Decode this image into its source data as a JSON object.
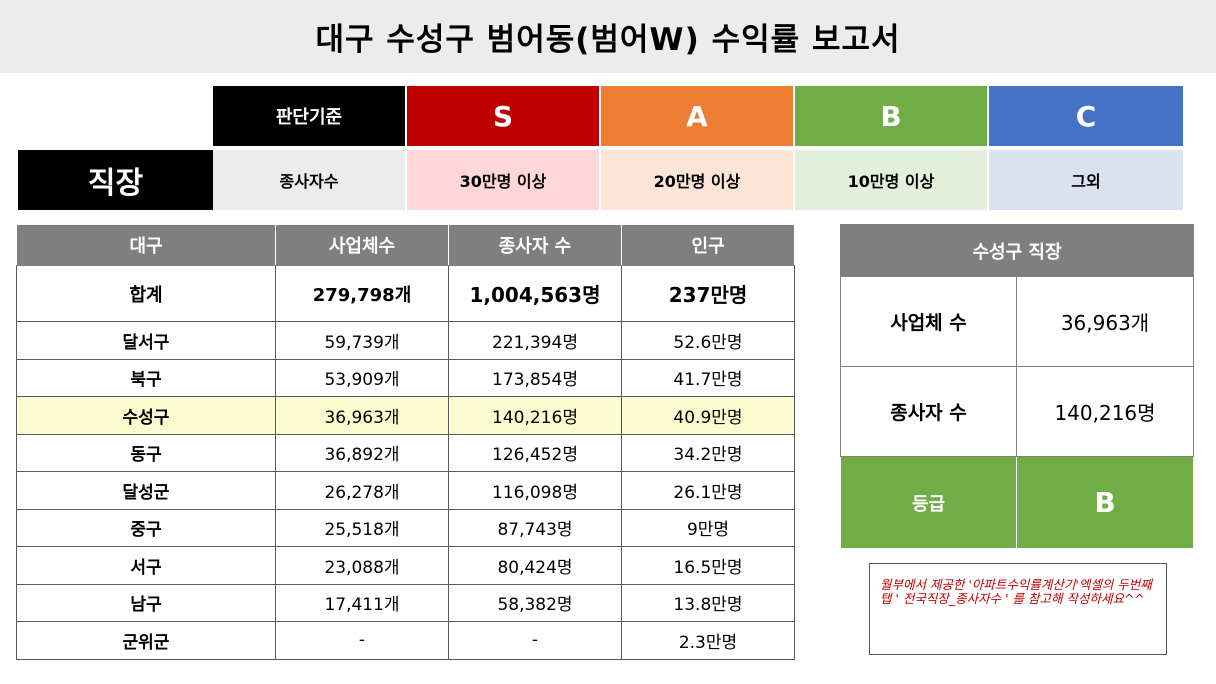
{
  "title": "대구 수성구 범어동(범어W) 수익률 보고서",
  "criteria": {
    "judge_label": "판단기준",
    "category_label": "직장",
    "metric_label": "종사자수",
    "grades": [
      {
        "grade": "S",
        "range": "30만명 이상",
        "color": "#c00000"
      },
      {
        "grade": "A",
        "range": "20만명 이상",
        "color": "#ed7d31"
      },
      {
        "grade": "B",
        "range": "10만명 이상",
        "color": "#70ad47"
      },
      {
        "grade": "C",
        "range": "그외",
        "color": "#4472c4"
      }
    ]
  },
  "district_table": {
    "headers": [
      "대구",
      "사업체수",
      "종사자 수",
      "인구"
    ],
    "total": {
      "name": "합계",
      "businesses": "279,798개",
      "employees": "1,004,563명",
      "population": "237만명"
    },
    "rows": [
      {
        "name": "달서구",
        "businesses": "59,739개",
        "employees": "221,394명",
        "population": "52.6만명"
      },
      {
        "name": "북구",
        "businesses": "53,909개",
        "employees": "173,854명",
        "population": "41.7만명"
      },
      {
        "name": "수성구",
        "businesses": "36,963개",
        "employees": "140,216명",
        "population": "40.9만명"
      },
      {
        "name": "동구",
        "businesses": "36,892개",
        "employees": "126,452명",
        "population": "34.2만명"
      },
      {
        "name": "달성군",
        "businesses": "26,278개",
        "employees": "116,098명",
        "population": "26.1만명"
      },
      {
        "name": "중구",
        "businesses": "25,518개",
        "employees": "87,743명",
        "population": "9만명"
      },
      {
        "name": "서구",
        "businesses": "23,088개",
        "employees": "80,424명",
        "population": "16.5만명"
      },
      {
        "name": "남구",
        "businesses": "17,411개",
        "employees": "58,382명",
        "population": "13.8만명"
      },
      {
        "name": "군위군",
        "businesses": "-",
        "employees": "-",
        "population": "2.3만명"
      }
    ],
    "highlight_color": "#fdfcd1"
  },
  "summary": {
    "title": "수성구 직장",
    "businesses_label": "사업체 수",
    "businesses_value": "36,963개",
    "employees_label": "종사자 수",
    "employees_value": "140,216명",
    "grade_label": "등급",
    "grade_value": "B"
  },
  "note": {
    "text": "월부에서 제공한 '아파트수익률계산기'엑셀의 두번째 탭 ' 전국직장_종사자수 ' 를 참고해 작성하세요^^"
  }
}
